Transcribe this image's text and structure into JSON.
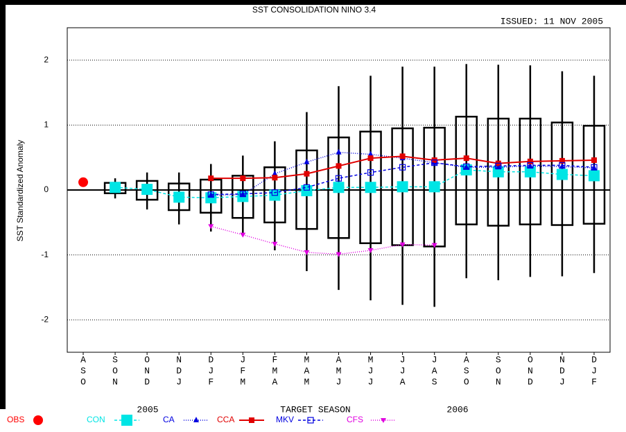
{
  "chart_data": {
    "type": "box",
    "title": "SST CONSOLIDATION NINO 3.4",
    "issued": "ISSUED: 11 NOV 2005",
    "y_label": "SST Standardized Anomaly",
    "x_label": "TARGET SEASON",
    "year_labels": [
      "2005",
      "2006"
    ],
    "categories": [
      [
        "A",
        "S",
        "O"
      ],
      [
        "S",
        "O",
        "N"
      ],
      [
        "O",
        "N",
        "D"
      ],
      [
        "N",
        "D",
        "J"
      ],
      [
        "D",
        "J",
        "F"
      ],
      [
        "J",
        "F",
        "M"
      ],
      [
        "F",
        "M",
        "A"
      ],
      [
        "M",
        "A",
        "M"
      ],
      [
        "A",
        "M",
        "J"
      ],
      [
        "M",
        "J",
        "J"
      ],
      [
        "J",
        "J",
        "A"
      ],
      [
        "J",
        "A",
        "S"
      ],
      [
        "A",
        "S",
        "O"
      ],
      [
        "S",
        "O",
        "N"
      ],
      [
        "O",
        "N",
        "D"
      ],
      [
        "N",
        "D",
        "J"
      ],
      [
        "D",
        "J",
        "F"
      ]
    ],
    "ylim": [
      -2.5,
      2.5
    ],
    "yticks": [
      -2,
      -1,
      0,
      1,
      2
    ],
    "grid": true,
    "boxes": {
      "whisker_high": [
        null,
        0.18,
        0.27,
        0.27,
        0.4,
        0.53,
        0.75,
        1.2,
        1.6,
        1.76,
        1.9,
        1.9,
        1.94,
        1.93,
        1.92,
        1.83,
        1.76
      ],
      "box_high": [
        null,
        0.11,
        0.14,
        0.1,
        0.16,
        0.22,
        0.35,
        0.61,
        0.81,
        0.9,
        0.95,
        0.96,
        1.13,
        1.1,
        1.1,
        1.04,
        0.99
      ],
      "box_low": [
        null,
        -0.05,
        -0.15,
        -0.31,
        -0.35,
        -0.43,
        -0.5,
        -0.6,
        -0.74,
        -0.82,
        -0.85,
        -0.87,
        -0.53,
        -0.55,
        -0.53,
        -0.54,
        -0.52
      ],
      "whisker_low": [
        null,
        -0.13,
        -0.3,
        -0.53,
        -0.64,
        -0.7,
        -0.93,
        -1.25,
        -1.54,
        -1.7,
        -1.77,
        -1.8,
        -1.36,
        -1.39,
        -1.34,
        -1.33,
        -1.28
      ]
    },
    "series": [
      {
        "name": "OBS",
        "color": "#ff0000",
        "marker": "circle",
        "line": "none",
        "values": [
          0.12,
          null,
          null,
          null,
          null,
          null,
          null,
          null,
          null,
          null,
          null,
          null,
          null,
          null,
          null,
          null,
          null
        ]
      },
      {
        "name": "CON",
        "color": "#00e5e5",
        "marker": "big-square",
        "line": "dashed",
        "values": [
          null,
          0.04,
          0.01,
          -0.11,
          -0.12,
          -0.1,
          -0.08,
          -0.01,
          0.04,
          0.04,
          0.05,
          0.05,
          0.31,
          0.28,
          0.28,
          0.24,
          0.22
        ]
      },
      {
        "name": "CA",
        "color": "#0000e0",
        "marker": "triangle",
        "line": "dotted",
        "values": [
          null,
          null,
          null,
          null,
          -0.08,
          -0.07,
          0.25,
          0.43,
          0.58,
          0.55,
          0.49,
          0.42,
          0.35,
          0.35,
          0.37,
          0.36,
          0.34
        ]
      },
      {
        "name": "CCA",
        "color": "#e00000",
        "marker": "square",
        "line": "solid",
        "values": [
          null,
          null,
          null,
          null,
          0.18,
          0.18,
          0.19,
          0.25,
          0.37,
          0.49,
          0.52,
          0.46,
          0.49,
          0.41,
          0.44,
          0.45,
          0.46
        ]
      },
      {
        "name": "MKV",
        "color": "#0000e0",
        "marker": "open-square",
        "line": "dashed",
        "values": [
          null,
          null,
          null,
          null,
          -0.07,
          -0.06,
          -0.04,
          0.04,
          0.18,
          0.27,
          0.35,
          0.42,
          0.36,
          0.37,
          0.38,
          0.38,
          0.35
        ]
      },
      {
        "name": "CFS",
        "color": "#e000e0",
        "marker": "triangle-down",
        "line": "dotted",
        "values": [
          null,
          null,
          null,
          null,
          -0.56,
          -0.69,
          -0.83,
          -0.96,
          -0.99,
          -0.93,
          -0.84,
          -0.85,
          null,
          null,
          null,
          null,
          null
        ]
      }
    ]
  }
}
